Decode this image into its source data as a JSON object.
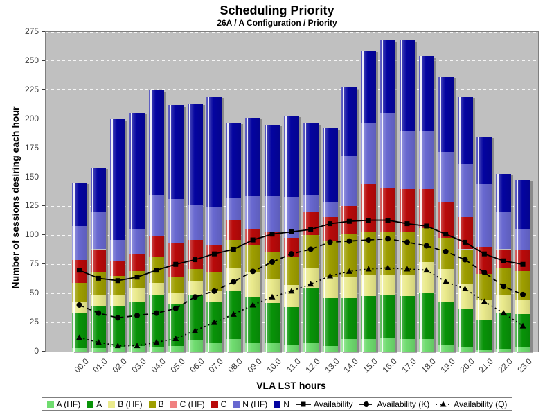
{
  "title": "Scheduling Priority",
  "subtitle": "26A / A Configuration /  Priority",
  "chart_data": {
    "type": "bar",
    "stacked": true,
    "title": "Scheduling Priority",
    "subtitle": "26A / A Configuration /  Priority",
    "xlabel": "VLA LST hours",
    "ylabel": "Number of sessions desiring each hour",
    "ylim": [
      0,
      275
    ],
    "yticks": [
      0,
      25,
      50,
      75,
      100,
      125,
      150,
      175,
      200,
      225,
      250,
      275
    ],
    "grid": "horizontal-white-dashed",
    "plot_background": "#C0C0C0",
    "legend_position": "bottom",
    "categories": [
      "00.0",
      "01.0",
      "02.0",
      "03.0",
      "04.0",
      "05.0",
      "06.0",
      "07.0",
      "08.0",
      "09.0",
      "10.0",
      "11.0",
      "12.0",
      "13.0",
      "14.0",
      "15.0",
      "16.0",
      "17.0",
      "18.0",
      "19.0",
      "20.0",
      "21.0",
      "22.0",
      "23.0"
    ],
    "bar_totals": [
      145,
      158,
      200,
      205,
      225,
      212,
      213,
      219,
      197,
      201,
      195,
      203,
      196,
      192,
      227,
      259,
      268,
      268,
      254,
      236,
      219,
      185,
      153,
      148
    ],
    "bar_series": [
      {
        "name": "A (HF)",
        "color": "#6FDC6F",
        "values": [
          3,
          3,
          4,
          5,
          4,
          5,
          10,
          8,
          11,
          8,
          7,
          6,
          8,
          5,
          11,
          11,
          12,
          11,
          11,
          6,
          4,
          1,
          2,
          4
        ]
      },
      {
        "name": "A",
        "color": "#089308",
        "values": [
          30,
          36,
          35,
          38,
          45,
          36,
          39,
          35,
          41,
          39,
          35,
          32,
          46,
          41,
          35,
          37,
          37,
          37,
          40,
          37,
          33,
          26,
          31,
          28
        ]
      },
      {
        "name": "B (HF)",
        "color": "#EAEA8C",
        "values": [
          10,
          10,
          10,
          11,
          10,
          10,
          12,
          9,
          20,
          21,
          20,
          19,
          18,
          18,
          18,
          18,
          17,
          18,
          26,
          28,
          21,
          17,
          16,
          13
        ]
      },
      {
        "name": "B",
        "color": "#9E9E00",
        "values": [
          16,
          19,
          16,
          15,
          23,
          13,
          10,
          16,
          24,
          23,
          24,
          24,
          28,
          31,
          37,
          37,
          37,
          37,
          29,
          27,
          30,
          23,
          23,
          24
        ]
      },
      {
        "name": "C (HF)",
        "color": "#F08080",
        "values": [
          0,
          0,
          0,
          0,
          0,
          0,
          0,
          0,
          0,
          0,
          0,
          0,
          0,
          0,
          0,
          0,
          0,
          0,
          0,
          0,
          0,
          0,
          0,
          0
        ]
      },
      {
        "name": "C",
        "color": "#B90A0A",
        "values": [
          20,
          20,
          13,
          15,
          17,
          29,
          25,
          23,
          17,
          14,
          17,
          17,
          20,
          21,
          24,
          41,
          38,
          37,
          34,
          30,
          28,
          23,
          16,
          18
        ]
      },
      {
        "name": "N (HF)",
        "color": "#6868D0",
        "values": [
          29,
          32,
          18,
          21,
          36,
          38,
          30,
          33,
          19,
          29,
          31,
          35,
          15,
          12,
          43,
          53,
          64,
          50,
          50,
          44,
          45,
          54,
          32,
          18
        ]
      },
      {
        "name": "N",
        "color": "#0404A0",
        "values": [
          37,
          38,
          104,
          100,
          90,
          81,
          87,
          95,
          65,
          67,
          61,
          70,
          61,
          64,
          59,
          62,
          63,
          78,
          64,
          64,
          58,
          41,
          33,
          43
        ]
      }
    ],
    "line_series": [
      {
        "name": "Availability",
        "color": "#000000",
        "style": "solid",
        "marker": "square",
        "values": [
          70,
          63,
          61,
          64,
          70,
          75,
          79,
          84,
          88,
          96,
          101,
          103,
          105,
          110,
          112,
          113,
          113,
          110,
          108,
          101,
          94,
          84,
          78,
          75
        ]
      },
      {
        "name": "Availability (K)",
        "color": "#000000",
        "style": "dashed",
        "marker": "circle",
        "values": [
          40,
          33,
          29,
          31,
          33,
          37,
          47,
          52,
          60,
          69,
          77,
          84,
          88,
          94,
          95,
          96,
          97,
          94,
          91,
          86,
          79,
          68,
          56,
          49
        ]
      },
      {
        "name": "Availability (Q)",
        "color": "#000000",
        "style": "dotted",
        "marker": "triangle",
        "values": [
          12,
          8,
          5,
          5,
          8,
          11,
          18,
          25,
          32,
          40,
          47,
          52,
          58,
          65,
          69,
          71,
          72,
          71,
          70,
          60,
          54,
          43,
          33,
          22
        ]
      }
    ]
  }
}
